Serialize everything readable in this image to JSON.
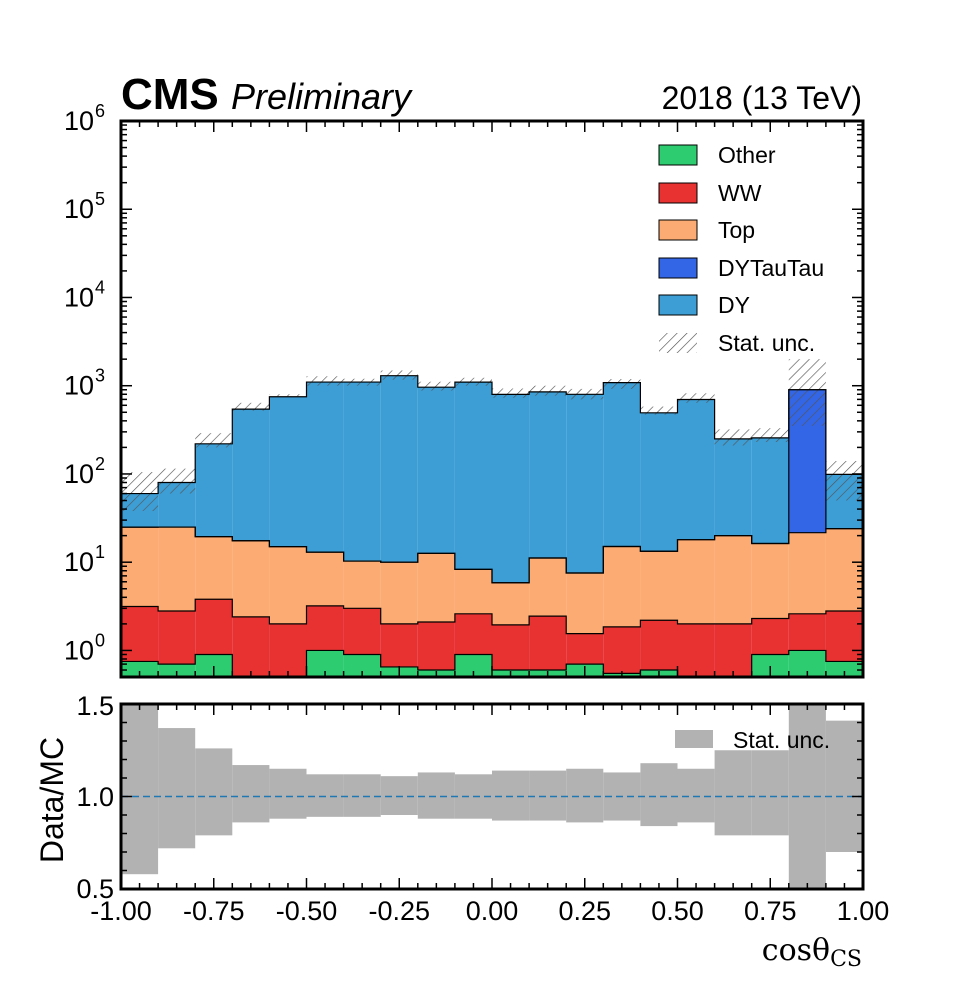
{
  "chart_data": [
    {
      "type": "stacked-histogram",
      "title": "",
      "header": {
        "experiment": "CMS",
        "status": "Preliminary",
        "lumi": "2018 (13 TeV)"
      },
      "xlabel": "",
      "ylabel": "",
      "yscale": "log",
      "ylim": [
        0.5,
        1000000
      ],
      "xlim": [
        -1.0,
        1.0
      ],
      "bin_edges": [
        -1.0,
        -0.9,
        -0.8,
        -0.7,
        -0.6,
        -0.5,
        -0.4,
        -0.3,
        -0.2,
        -0.1,
        0.0,
        0.1,
        0.2,
        0.3,
        0.4,
        0.5,
        0.6,
        0.7,
        0.8,
        0.9,
        1.0
      ],
      "ytick_labels": [
        {
          "base": "10",
          "exp": "0",
          "value": 1
        },
        {
          "base": "10",
          "exp": "1",
          "value": 10
        },
        {
          "base": "10",
          "exp": "2",
          "value": 100
        },
        {
          "base": "10",
          "exp": "3",
          "value": 1000
        },
        {
          "base": "10",
          "exp": "4",
          "value": 10000
        },
        {
          "base": "10",
          "exp": "5",
          "value": 100000
        },
        {
          "base": "10",
          "exp": "6",
          "value": 1000000
        }
      ],
      "series": [
        {
          "name": "Other",
          "color": "#2ecc71",
          "values": [
            0.75,
            0.7,
            0.9,
            0.45,
            0.4,
            1.0,
            0.9,
            0.65,
            0.6,
            0.9,
            0.6,
            0.6,
            0.7,
            0.55,
            0.6,
            0.45,
            0.45,
            0.9,
            1.0,
            0.75
          ]
        },
        {
          "name": "WW",
          "color": "#e83232",
          "values": [
            2.4,
            2.1,
            2.9,
            1.95,
            1.6,
            2.2,
            2.1,
            1.35,
            1.5,
            1.7,
            1.35,
            1.85,
            0.85,
            1.3,
            1.6,
            1.55,
            1.55,
            1.4,
            1.6,
            2.05
          ]
        },
        {
          "name": "Top",
          "color": "#fcab72",
          "values": [
            21.8,
            22.2,
            15.7,
            15.1,
            13.0,
            9.8,
            7.3,
            8.0,
            10.5,
            5.7,
            3.9,
            8.7,
            6.0,
            13.2,
            11.1,
            16.0,
            18.0,
            14.0,
            19.0,
            21.2
          ]
        },
        {
          "name": "DYTauTau",
          "color": "#3366e6",
          "values": [
            0,
            0,
            0,
            0,
            0,
            0,
            0,
            0,
            0,
            0,
            0,
            0,
            0,
            0,
            0,
            0,
            0,
            0,
            880,
            0
          ]
        },
        {
          "name": "DY",
          "color": "#3d9ed6",
          "values": [
            35,
            55,
            200,
            525,
            735,
            1087,
            1090,
            1290,
            950,
            1090,
            792,
            840,
            792,
            1070,
            480,
            680,
            230,
            240,
            0,
            75
          ]
        }
      ],
      "stat_unc_up": [
        105,
        115,
        290,
        640,
        800,
        1280,
        1200,
        1490,
        1110,
        1230,
        930,
        1000,
        920,
        1190,
        580,
        820,
        320,
        330,
        2000,
        140
      ],
      "stat_unc_down": [
        38,
        60,
        200,
        520,
        760,
        1000,
        1000,
        1170,
        880,
        1000,
        730,
        770,
        700,
        920,
        470,
        640,
        210,
        230,
        350,
        50
      ],
      "legend": {
        "position": "top-right",
        "entries": [
          "Other",
          "WW",
          "Top",
          "DYTauTau",
          "DY",
          "Stat. unc."
        ]
      }
    },
    {
      "type": "ratio-band",
      "ylabel": "Data/MC",
      "xlabel": "cosθCS",
      "ylim": [
        0.5,
        1.5
      ],
      "yticks": [
        "0.5",
        "1.0",
        "1.5"
      ],
      "xticks": [
        "-1.00",
        "-0.75",
        "-0.50",
        "-0.25",
        "0.00",
        "0.25",
        "0.50",
        "0.75",
        "1.00"
      ],
      "reference_line": 1.0,
      "band_color": "#b2b2b2",
      "stat_unc_up": [
        1.5,
        1.37,
        1.26,
        1.17,
        1.15,
        1.12,
        1.12,
        1.11,
        1.13,
        1.12,
        1.14,
        1.14,
        1.15,
        1.13,
        1.18,
        1.15,
        1.25,
        1.25,
        1.5,
        1.41
      ],
      "stat_unc_down": [
        0.58,
        0.72,
        0.79,
        0.86,
        0.88,
        0.89,
        0.89,
        0.9,
        0.88,
        0.88,
        0.87,
        0.87,
        0.86,
        0.87,
        0.84,
        0.86,
        0.79,
        0.79,
        0.5,
        0.7
      ],
      "legend": {
        "position": "top-right",
        "entries": [
          "Stat. unc."
        ]
      }
    }
  ]
}
